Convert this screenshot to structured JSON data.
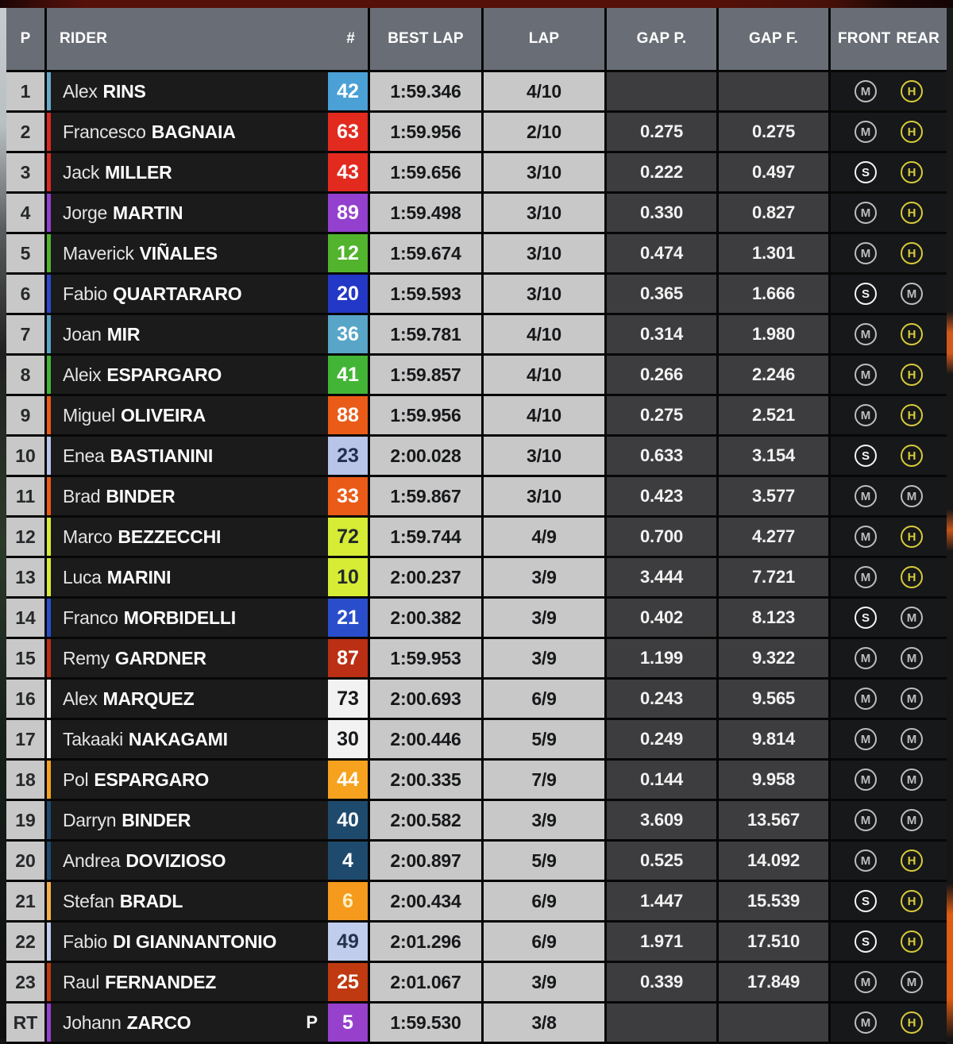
{
  "header": {
    "p": "P",
    "rider": "RIDER",
    "hash": "#",
    "best_lap": "BEST LAP",
    "lap": "LAP",
    "gap_p": "GAP P.",
    "gap_f": "GAP F.",
    "front": "FRONT",
    "rear": "REAR"
  },
  "tyre_colors": {
    "M": "#bcbdc0",
    "H": "#d7cc38",
    "S": "#f5f5f5"
  },
  "rows": [
    {
      "pos": "1",
      "first": "Alex",
      "last": "RINS",
      "pit": "",
      "num": "42",
      "plate_bg": "#4ba0d6",
      "plate_fg": "#ffffff",
      "stripe": "#68aac8",
      "best": "1:59.346",
      "lap": "4/10",
      "gap_p": "",
      "gap_f": "",
      "front": "M",
      "rear": "H"
    },
    {
      "pos": "2",
      "first": "Francesco",
      "last": "BAGNAIA",
      "pit": "",
      "num": "63",
      "plate_bg": "#e32a1f",
      "plate_fg": "#ffffff",
      "stripe": "#d92b22",
      "best": "1:59.956",
      "lap": "2/10",
      "gap_p": "0.275",
      "gap_f": "0.275",
      "front": "M",
      "rear": "H"
    },
    {
      "pos": "3",
      "first": "Jack",
      "last": "MILLER",
      "pit": "",
      "num": "43",
      "plate_bg": "#e32a1f",
      "plate_fg": "#ffffff",
      "stripe": "#d92b22",
      "best": "1:59.656",
      "lap": "3/10",
      "gap_p": "0.222",
      "gap_f": "0.497",
      "front": "S",
      "rear": "H"
    },
    {
      "pos": "4",
      "first": "Jorge",
      "last": "MARTIN",
      "pit": "",
      "num": "89",
      "plate_bg": "#9440cf",
      "plate_fg": "#ffffff",
      "stripe": "#9440cf",
      "best": "1:59.498",
      "lap": "3/10",
      "gap_p": "0.330",
      "gap_f": "0.827",
      "front": "M",
      "rear": "H"
    },
    {
      "pos": "5",
      "first": "Maverick",
      "last": "VIÑALES",
      "pit": "",
      "num": "12",
      "plate_bg": "#52b42d",
      "plate_fg": "#ffffff",
      "stripe": "#52b42d",
      "best": "1:59.674",
      "lap": "3/10",
      "gap_p": "0.474",
      "gap_f": "1.301",
      "front": "M",
      "rear": "H"
    },
    {
      "pos": "6",
      "first": "Fabio",
      "last": "QUARTARARO",
      "pit": "",
      "num": "20",
      "plate_bg": "#2338c6",
      "plate_fg": "#ffffff",
      "stripe": "#2f49cc",
      "best": "1:59.593",
      "lap": "3/10",
      "gap_p": "0.365",
      "gap_f": "1.666",
      "front": "S",
      "rear": "M"
    },
    {
      "pos": "7",
      "first": "Joan",
      "last": "MIR",
      "pit": "",
      "num": "36",
      "plate_bg": "#58a5c8",
      "plate_fg": "#ffffff",
      "stripe": "#58a5c8",
      "best": "1:59.781",
      "lap": "4/10",
      "gap_p": "0.314",
      "gap_f": "1.980",
      "front": "M",
      "rear": "H"
    },
    {
      "pos": "8",
      "first": "Aleix",
      "last": "ESPARGARO",
      "pit": "",
      "num": "41",
      "plate_bg": "#43b536",
      "plate_fg": "#ffffff",
      "stripe": "#43b536",
      "best": "1:59.857",
      "lap": "4/10",
      "gap_p": "0.266",
      "gap_f": "2.246",
      "front": "M",
      "rear": "H"
    },
    {
      "pos": "9",
      "first": "Miguel",
      "last": "OLIVEIRA",
      "pit": "",
      "num": "88",
      "plate_bg": "#ea5b17",
      "plate_fg": "#ffffff",
      "stripe": "#ea5b17",
      "best": "1:59.956",
      "lap": "4/10",
      "gap_p": "0.275",
      "gap_f": "2.521",
      "front": "M",
      "rear": "H"
    },
    {
      "pos": "10",
      "first": "Enea",
      "last": "BASTIANINI",
      "pit": "",
      "num": "23",
      "plate_bg": "#b8c4e8",
      "plate_fg": "#232f52",
      "stripe": "#b8c4e8",
      "best": "2:00.028",
      "lap": "3/10",
      "gap_p": "0.633",
      "gap_f": "3.154",
      "front": "S",
      "rear": "H"
    },
    {
      "pos": "11",
      "first": "Brad",
      "last": "BINDER",
      "pit": "",
      "num": "33",
      "plate_bg": "#ea5b17",
      "plate_fg": "#ffffff",
      "stripe": "#ea5b17",
      "best": "1:59.867",
      "lap": "3/10",
      "gap_p": "0.423",
      "gap_f": "3.577",
      "front": "M",
      "rear": "M"
    },
    {
      "pos": "12",
      "first": "Marco",
      "last": "BEZZECCHI",
      "pit": "",
      "num": "72",
      "plate_bg": "#d6ec35",
      "plate_fg": "#23282c",
      "stripe": "#d6ec35",
      "best": "1:59.744",
      "lap": "4/9",
      "gap_p": "0.700",
      "gap_f": "4.277",
      "front": "M",
      "rear": "H"
    },
    {
      "pos": "13",
      "first": "Luca",
      "last": "MARINI",
      "pit": "",
      "num": "10",
      "plate_bg": "#d6ec35",
      "plate_fg": "#23282c",
      "stripe": "#d6ec35",
      "best": "2:00.237",
      "lap": "3/9",
      "gap_p": "3.444",
      "gap_f": "7.721",
      "front": "M",
      "rear": "H"
    },
    {
      "pos": "14",
      "first": "Franco",
      "last": "MORBIDELLI",
      "pit": "",
      "num": "21",
      "plate_bg": "#2a4ecb",
      "plate_fg": "#ffffff",
      "stripe": "#2a4ecb",
      "best": "2:00.382",
      "lap": "3/9",
      "gap_p": "0.402",
      "gap_f": "8.123",
      "front": "S",
      "rear": "M"
    },
    {
      "pos": "15",
      "first": "Remy",
      "last": "GARDNER",
      "pit": "",
      "num": "87",
      "plate_bg": "#bb2f14",
      "plate_fg": "#ffffff",
      "stripe": "#bb2f14",
      "best": "1:59.953",
      "lap": "3/9",
      "gap_p": "1.199",
      "gap_f": "9.322",
      "front": "M",
      "rear": "M"
    },
    {
      "pos": "16",
      "first": "Alex",
      "last": "MARQUEZ",
      "pit": "",
      "num": "73",
      "plate_bg": "#f2f2f2",
      "plate_fg": "#17181a",
      "stripe": "#f2f2f2",
      "best": "2:00.693",
      "lap": "6/9",
      "gap_p": "0.243",
      "gap_f": "9.565",
      "front": "M",
      "rear": "M"
    },
    {
      "pos": "17",
      "first": "Takaaki",
      "last": "NAKAGAMI",
      "pit": "",
      "num": "30",
      "plate_bg": "#f2f2f2",
      "plate_fg": "#17181a",
      "stripe": "#f2f2f2",
      "best": "2:00.446",
      "lap": "5/9",
      "gap_p": "0.249",
      "gap_f": "9.814",
      "front": "M",
      "rear": "M"
    },
    {
      "pos": "18",
      "first": "Pol",
      "last": "ESPARGARO",
      "pit": "",
      "num": "44",
      "plate_bg": "#f6a21e",
      "plate_fg": "#ffffff",
      "stripe": "#f6a21e",
      "best": "2:00.335",
      "lap": "7/9",
      "gap_p": "0.144",
      "gap_f": "9.958",
      "front": "M",
      "rear": "M"
    },
    {
      "pos": "19",
      "first": "Darryn",
      "last": "BINDER",
      "pit": "",
      "num": "40",
      "plate_bg": "#1e4a6d",
      "plate_fg": "#ffffff",
      "stripe": "#1e4a6d",
      "best": "2:00.582",
      "lap": "3/9",
      "gap_p": "3.609",
      "gap_f": "13.567",
      "front": "M",
      "rear": "M"
    },
    {
      "pos": "20",
      "first": "Andrea",
      "last": "DOVIZIOSO",
      "pit": "",
      "num": "4",
      "plate_bg": "#1e4a6d",
      "plate_fg": "#ffffff",
      "stripe": "#1e4a6d",
      "best": "2:00.897",
      "lap": "5/9",
      "gap_p": "0.525",
      "gap_f": "14.092",
      "front": "M",
      "rear": "H"
    },
    {
      "pos": "21",
      "first": "Stefan",
      "last": "BRADL",
      "pit": "",
      "num": "6",
      "plate_bg": "#f59a1d",
      "plate_fg": "#fdf0c2",
      "stripe": "#f5b04a",
      "best": "2:00.434",
      "lap": "6/9",
      "gap_p": "1.447",
      "gap_f": "15.539",
      "front": "S",
      "rear": "H"
    },
    {
      "pos": "22",
      "first": "Fabio",
      "last": "DI GIANNANTONIO",
      "pit": "",
      "num": "49",
      "plate_bg": "#c0cdec",
      "plate_fg": "#27324e",
      "stripe": "#c0cdec",
      "best": "2:01.296",
      "lap": "6/9",
      "gap_p": "1.971",
      "gap_f": "17.510",
      "front": "S",
      "rear": "H"
    },
    {
      "pos": "23",
      "first": "Raul",
      "last": "FERNANDEZ",
      "pit": "",
      "num": "25",
      "plate_bg": "#bf3a10",
      "plate_fg": "#ffffff",
      "stripe": "#bf3a10",
      "best": "2:01.067",
      "lap": "3/9",
      "gap_p": "0.339",
      "gap_f": "17.849",
      "front": "M",
      "rear": "M"
    },
    {
      "pos": "RT",
      "first": "Johann",
      "last": "ZARCO",
      "pit": "P",
      "num": "5",
      "plate_bg": "#9640cc",
      "plate_fg": "#ffffff",
      "stripe": "#9640cc",
      "best": "1:59.530",
      "lap": "3/8",
      "gap_p": "",
      "gap_f": "",
      "front": "M",
      "rear": "H"
    }
  ]
}
